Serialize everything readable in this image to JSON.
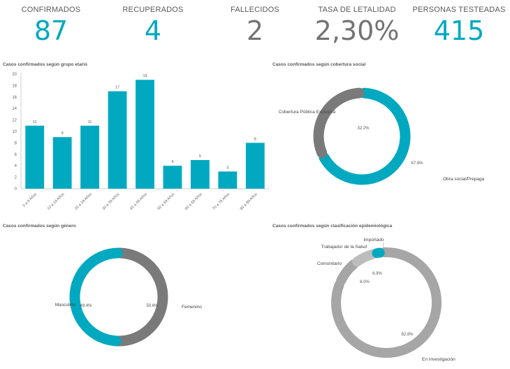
{
  "kpis": [
    {
      "label": "CONFIRMADOS",
      "value": "87",
      "color": "#00a9c0"
    },
    {
      "label": "RECUPERADOS",
      "value": "4",
      "color": "#00a9c0"
    },
    {
      "label": "FALLECIDOS",
      "value": "2",
      "color": "#737373"
    },
    {
      "label": "TASA DE LETALIDAD",
      "value": "2,30%",
      "color": "#737373"
    },
    {
      "label": "PERSONAS TESTEADAS",
      "value": "415",
      "color": "#00a9c0"
    }
  ],
  "chart_data": [
    {
      "type": "bar",
      "title": "Casos confirmados según grupo etario",
      "categories": [
        "0 a 9 Años",
        "10 a 19 Años",
        "20 a 29 Años",
        "30 a 39 Años",
        "40 a 49 Años",
        "50 a 59 Años",
        "60 a 69 Años",
        "70 a 79 Años",
        "80 a 89 Años"
      ],
      "values": [
        11,
        9,
        11,
        17,
        19,
        4,
        5,
        3,
        8
      ],
      "ylim": [
        0,
        20
      ],
      "yticks": [
        0,
        2,
        4,
        6,
        8,
        10,
        12,
        14,
        16,
        18,
        20
      ],
      "color": "#00a9c0",
      "grid": false
    },
    {
      "type": "pie",
      "title": "Casos confirmados según cobertura social",
      "slices": [
        {
          "label": "Obra social/Prepaga",
          "value": 67.8,
          "pct_label": "67.8%",
          "color": "#00a9c0"
        },
        {
          "label": "Cobertura Pública Exclusiva",
          "value": 32.2,
          "pct_label": "32.2%",
          "color": "#7a7a7a"
        }
      ]
    },
    {
      "type": "pie",
      "title": "Casos confirmados según género",
      "slices": [
        {
          "label": "Femenino",
          "value": 50.6,
          "pct_label": "50.6%",
          "color": "#7a7a7a"
        },
        {
          "label": "Masculino",
          "value": 49.4,
          "pct_label": "49.4%",
          "color": "#00a9c0"
        }
      ]
    },
    {
      "type": "pie",
      "title": "Casos confirmados según clasificación epidemiológica",
      "slices": [
        {
          "label": "En Investigación",
          "value": 82.8,
          "pct_label": "82.8%",
          "color": "#a6a6a6"
        },
        {
          "label": "Comunitario",
          "value": 8.0,
          "pct_label": "8.0%",
          "color": "#a6a6a6"
        },
        {
          "label": "Trabajador de la Salud",
          "value": 6.9,
          "pct_label": "6.9%",
          "color": "#bdbdbd"
        },
        {
          "label": "Importado",
          "value": 2.3,
          "pct_label": "",
          "color": "#00a9c0"
        }
      ]
    }
  ]
}
